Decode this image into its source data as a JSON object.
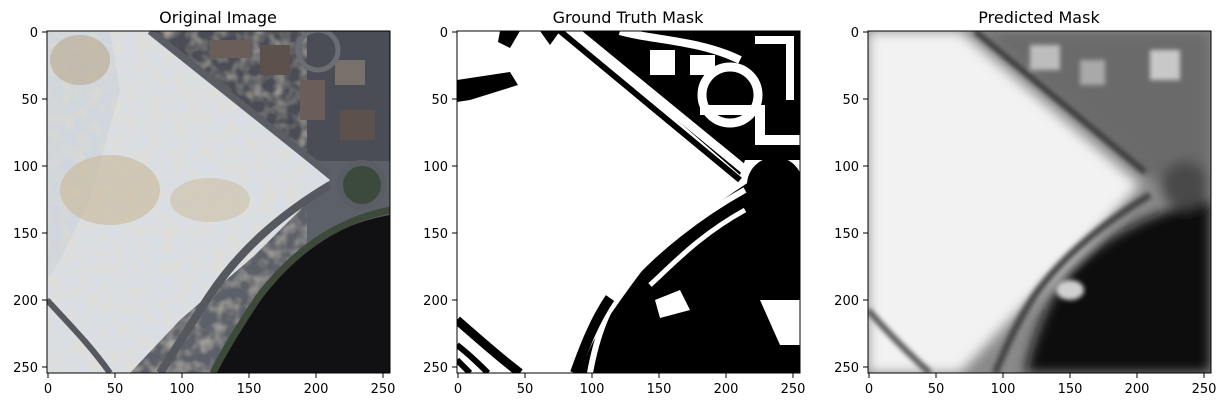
{
  "chart_data": [
    {
      "type": "image",
      "title": "Original Image",
      "xlim": [
        0,
        256
      ],
      "ylim": [
        256,
        0
      ],
      "xticks": [
        0,
        50,
        100,
        150,
        200,
        250
      ],
      "yticks": [
        0,
        50,
        100,
        150,
        200,
        250
      ],
      "content": "rgb satellite tile: pale desert construction site, highway, roundabout, dark water body lower right",
      "colors": {
        "ground": "#d8dde3",
        "sand": "#c8b89a",
        "road": "#55585e",
        "water": "#111114",
        "vegetation": "#3f4a3a"
      }
    },
    {
      "type": "image",
      "title": "Ground Truth Mask",
      "xlim": [
        0,
        256
      ],
      "ylim": [
        256,
        0
      ],
      "xticks": [
        0,
        50,
        100,
        150,
        200,
        250
      ],
      "yticks": [
        0,
        50,
        100,
        150,
        200,
        250
      ],
      "content": "binary mask, white = target class, black = background",
      "colors": {
        "positive": "#ffffff",
        "negative": "#000000"
      }
    },
    {
      "type": "image",
      "title": "Predicted Mask",
      "xlim": [
        0,
        256
      ],
      "ylim": [
        256,
        0
      ],
      "xticks": [
        0,
        50,
        100,
        150,
        200,
        250
      ],
      "yticks": [
        0,
        50,
        100,
        150,
        200,
        250
      ],
      "content": "grayscale probability map, bright = target class",
      "colors": {
        "high": "#f2f2f2",
        "mid": "#7a7a7a",
        "low": "#0c0c0c"
      }
    }
  ]
}
